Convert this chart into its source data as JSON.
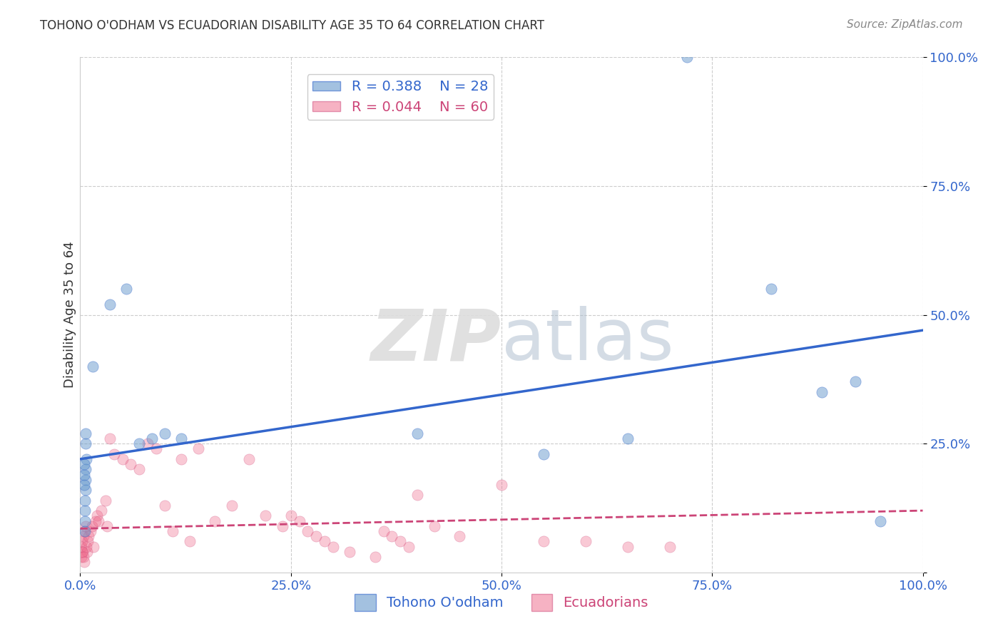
{
  "title": "TOHONO O'ODHAM VS ECUADORIAN DISABILITY AGE 35 TO 64 CORRELATION CHART",
  "source": "Source: ZipAtlas.com",
  "ylabel": "Disability Age 35 to 64",
  "xlabel": "",
  "blue_label": "Tohono O'odham",
  "pink_label": "Ecuadorians",
  "blue_R": "R = 0.388",
  "blue_N": "N = 28",
  "pink_R": "R = 0.044",
  "pink_N": "N = 60",
  "blue_scatter_x": [
    0.68,
    0.63,
    0.67,
    0.65,
    0.62,
    0.6,
    0.58,
    0.56,
    0.54,
    0.52,
    0.5,
    0.48,
    0.46,
    1.5,
    3.5,
    5.5,
    7.0,
    8.5,
    10.0,
    12.0,
    40.0,
    55.0,
    65.0,
    72.0,
    82.0,
    88.0,
    92.0,
    95.0
  ],
  "blue_scatter_y": [
    22.0,
    25.0,
    27.0,
    20.0,
    18.0,
    16.0,
    12.0,
    8.0,
    10.0,
    14.0,
    17.0,
    19.0,
    21.0,
    40.0,
    52.0,
    55.0,
    25.0,
    26.0,
    27.0,
    26.0,
    27.0,
    23.0,
    26.0,
    100.0,
    55.0,
    35.0,
    37.0,
    10.0
  ],
  "pink_scatter_x": [
    0.1,
    0.2,
    0.3,
    0.4,
    0.5,
    0.6,
    0.7,
    0.8,
    0.9,
    1.0,
    1.2,
    1.4,
    1.6,
    1.8,
    2.0,
    2.5,
    3.0,
    3.5,
    4.0,
    5.0,
    6.0,
    7.0,
    8.0,
    9.0,
    10.0,
    12.0,
    14.0,
    16.0,
    18.0,
    20.0,
    22.0,
    24.0,
    25.0,
    26.0,
    27.0,
    28.0,
    29.0,
    30.0,
    32.0,
    35.0,
    36.0,
    37.0,
    38.0,
    39.0,
    40.0,
    42.0,
    50.0,
    55.0,
    60.0,
    65.0,
    0.15,
    0.25,
    0.35,
    0.45,
    2.2,
    3.2,
    11.0,
    13.0,
    45.0,
    70.0
  ],
  "pink_scatter_y": [
    5.0,
    6.0,
    4.0,
    7.0,
    8.0,
    9.0,
    5.0,
    4.0,
    6.0,
    7.0,
    8.0,
    9.0,
    5.0,
    10.0,
    11.0,
    12.0,
    14.0,
    26.0,
    23.0,
    22.0,
    21.0,
    20.0,
    25.0,
    24.0,
    13.0,
    22.0,
    24.0,
    10.0,
    13.0,
    22.0,
    11.0,
    9.0,
    11.0,
    10.0,
    8.0,
    7.0,
    6.0,
    5.0,
    4.0,
    3.0,
    8.0,
    7.0,
    6.0,
    5.0,
    15.0,
    9.0,
    17.0,
    6.0,
    6.0,
    5.0,
    3.0,
    4.0,
    3.0,
    2.0,
    10.0,
    9.0,
    8.0,
    6.0,
    7.0,
    5.0
  ],
  "blue_line_x": [
    0.0,
    100.0
  ],
  "blue_line_y_start": 22.0,
  "blue_line_y_end": 47.0,
  "pink_line_x": [
    0.0,
    100.0
  ],
  "pink_line_y_start": 8.5,
  "pink_line_y_end": 12.0,
  "xlim": [
    0.0,
    100.0
  ],
  "ylim": [
    0.0,
    100.0
  ],
  "xticks": [
    0.0,
    25.0,
    50.0,
    75.0,
    100.0
  ],
  "yticks": [
    0.0,
    25.0,
    50.0,
    75.0,
    100.0
  ],
  "xticklabels": [
    "0.0%",
    "25.0%",
    "50.0%",
    "75.0%",
    "100.0%"
  ],
  "yticklabels": [
    "",
    "25.0%",
    "50.0%",
    "75.0%",
    "100.0%"
  ],
  "grid_color": "#cccccc",
  "bg_color": "#ffffff",
  "blue_color": "#6699cc",
  "pink_color": "#ee6688",
  "blue_line_color": "#3366cc",
  "pink_line_color": "#cc4477"
}
